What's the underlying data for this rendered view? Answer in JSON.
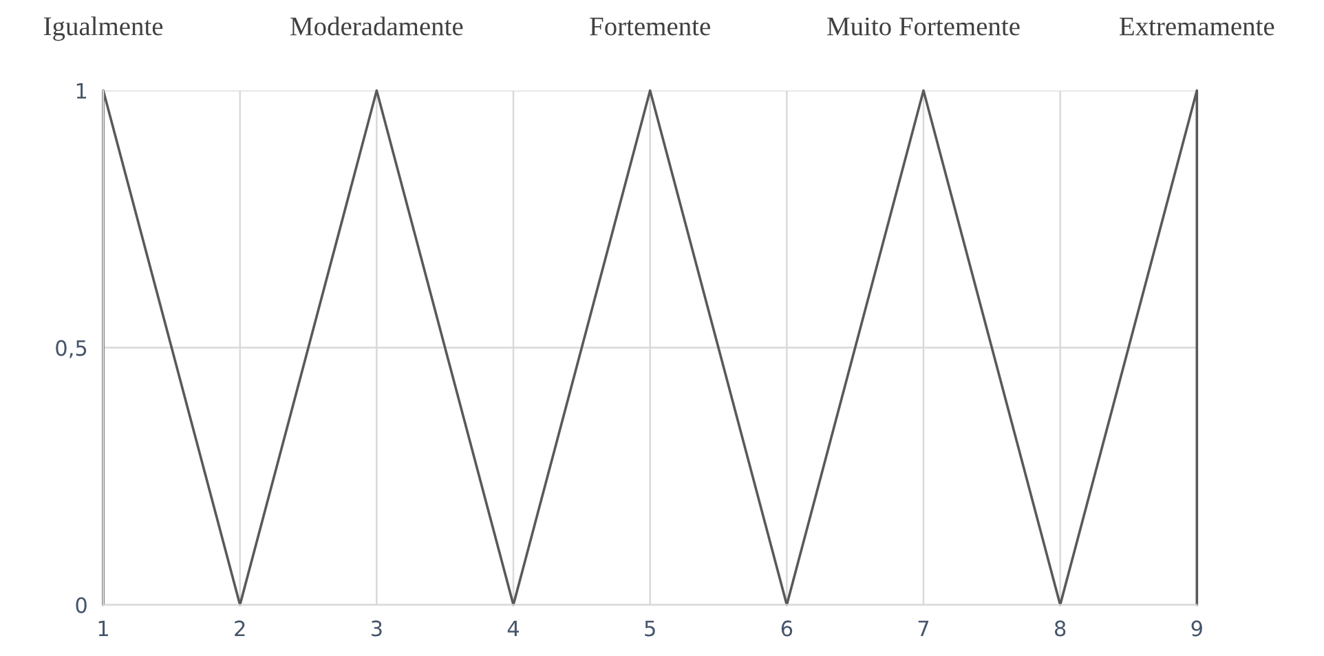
{
  "chart_data": {
    "type": "line",
    "x": [
      1,
      1,
      2,
      3,
      4,
      5,
      6,
      7,
      8,
      9,
      9
    ],
    "series": [
      {
        "color": "#595959",
        "values": [
          0,
          1,
          0,
          1,
          0,
          1,
          0,
          1,
          0,
          1,
          0
        ]
      }
    ],
    "xlim": [
      1,
      9
    ],
    "xticks": [
      1,
      2,
      3,
      4,
      5,
      6,
      7,
      8,
      9
    ],
    "ylim": [
      0,
      1
    ],
    "yticks": [
      0,
      {
        "value": 0.5,
        "label": "0,5"
      },
      1
    ],
    "grid": true,
    "marker": "none",
    "line_style": "solid",
    "annotations": [
      {
        "text": "Igualmente",
        "x": 1,
        "y": 1
      },
      {
        "text": "Moderadamente",
        "x": 3,
        "y": 1
      },
      {
        "text": "Fortemente",
        "x": 5,
        "y": 1
      },
      {
        "text": "Muito Fortemente",
        "x": 7,
        "y": 1
      },
      {
        "text": "Extremamente",
        "x": 9,
        "y": 1
      }
    ]
  }
}
